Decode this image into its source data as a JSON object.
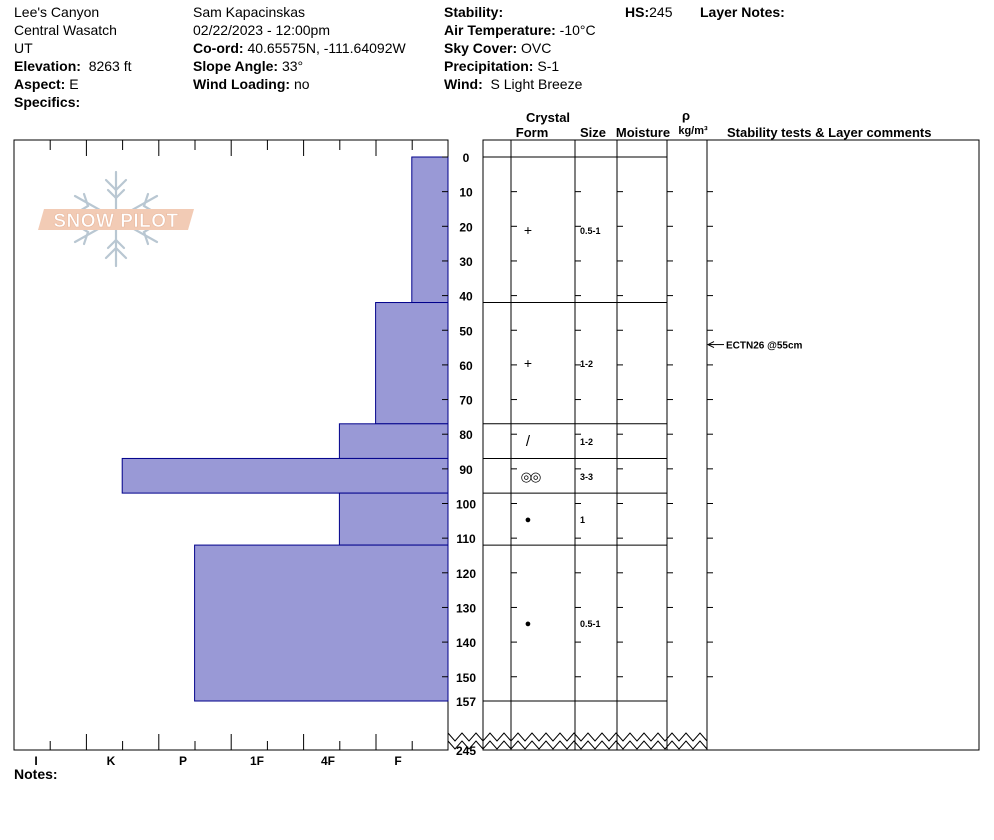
{
  "header": {
    "location": "Lee's Canyon",
    "range": "Central Wasatch",
    "state": "UT",
    "elevation_label": "Elevation:",
    "elevation_value": "8263 ft",
    "aspect_label": "Aspect:",
    "aspect_value": "E",
    "specifics_label": "Specifics:",
    "observer": "Sam Kapacinskas",
    "datetime": "02/22/2023 - 12:00pm",
    "coord_label": "Co-ord:",
    "coord_value": "40.65575N, -111.64092W",
    "slope_label": "Slope Angle:",
    "slope_value": "33°",
    "wind_loading_label": "Wind Loading:",
    "wind_loading_value": "no",
    "stability_label": "Stability:",
    "air_temp_label": "Air Temperature:",
    "air_temp_value": "-10°C",
    "sky_label": "Sky Cover:",
    "sky_value": "OVC",
    "precip_label": "Precipitation:",
    "precip_value": "S-1",
    "wind_label": "Wind:",
    "wind_value": "S Light Breeze",
    "hs_label": "HS:",
    "hs_value": "245",
    "layer_notes_label": "Layer Notes:"
  },
  "columns": {
    "crystal": "Crystal",
    "form": "Form",
    "size": "Size",
    "moisture": "Moisture",
    "rho": "ρ",
    "density_unit": "kg/m³",
    "comments": "Stability tests & Layer comments"
  },
  "logo_text": "SNOW PILOT",
  "notes_label": "Notes:",
  "chart_data": {
    "type": "bar",
    "orientation": "horizontal",
    "y_axis": "depth_cm_from_surface",
    "y_ticks": [
      "0",
      "10",
      "20",
      "30",
      "40",
      "50",
      "60",
      "70",
      "80",
      "90",
      "100",
      "110",
      "120",
      "130",
      "140",
      "150",
      "157",
      "245"
    ],
    "x_hardness_labels": [
      "I",
      "K",
      "P",
      "1F",
      "4F",
      "F"
    ],
    "hardness_colors": {
      "bar_fill": "#9999d6",
      "bar_stroke": "#00008b"
    },
    "layers": [
      {
        "top": 0,
        "bottom": 42,
        "hardness_units": 1,
        "form": "+",
        "size": "0.5-1"
      },
      {
        "top": 42,
        "bottom": 77,
        "hardness_units": 2,
        "form": "+",
        "size": "1-2"
      },
      {
        "top": 77,
        "bottom": 87,
        "hardness_units": 3,
        "form": "/",
        "size": "1-2"
      },
      {
        "top": 87,
        "bottom": 97,
        "hardness_units": 9,
        "form": "◎◎",
        "size": "3-3"
      },
      {
        "top": 97,
        "bottom": 112,
        "hardness_units": 3,
        "form": "●",
        "size": "1"
      },
      {
        "top": 112,
        "bottom": 157,
        "hardness_units": 7,
        "form": "●",
        "size": "0.5-1"
      }
    ],
    "stability_tests": [
      {
        "depth": 55,
        "label": "ECTN26 @55cm"
      }
    ]
  }
}
